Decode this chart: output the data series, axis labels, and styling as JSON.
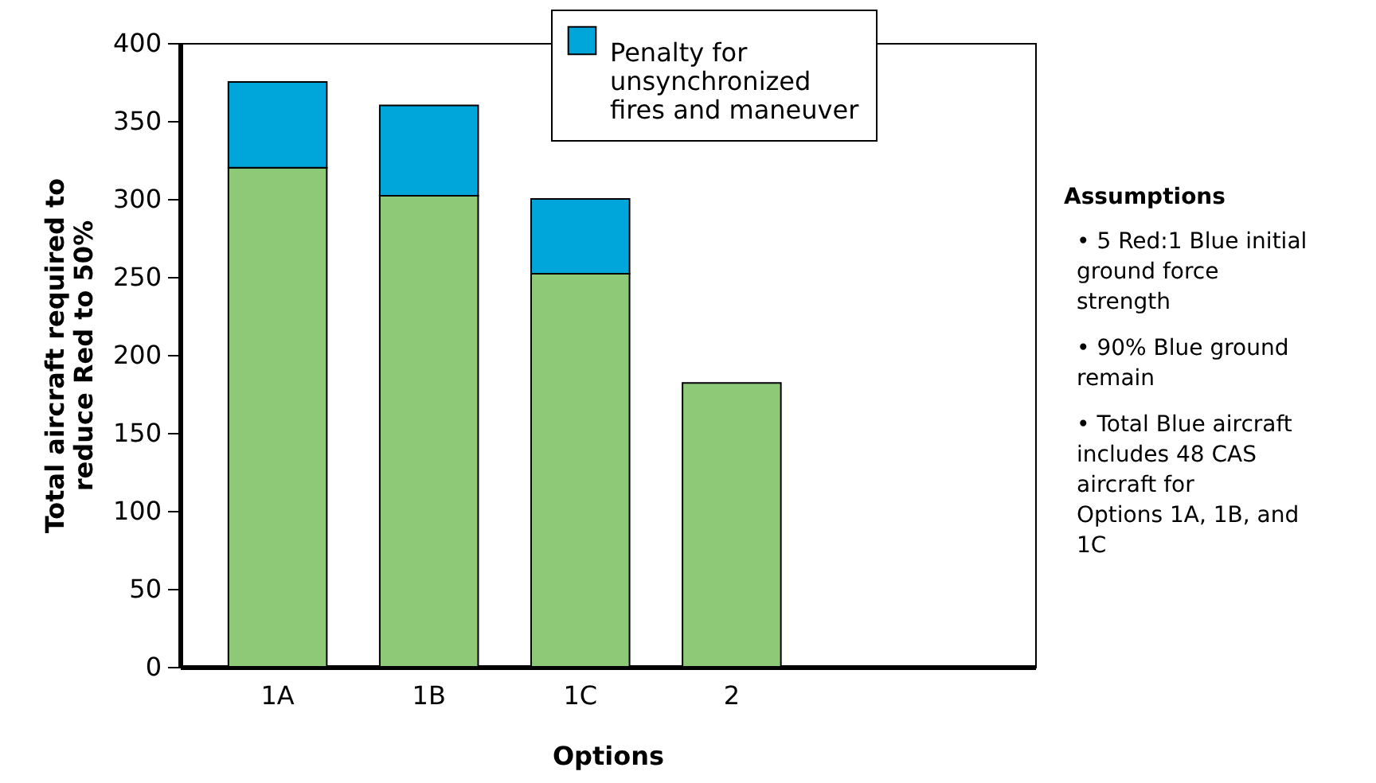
{
  "chart_data": {
    "type": "bar",
    "stacked": true,
    "xlabel": "Options",
    "ylabel": "Total aircraft required to reduce Red to 50%",
    "categories": [
      "1A",
      "1B",
      "1C",
      "2"
    ],
    "series": [
      {
        "color": "#8dc976",
        "values": [
          320,
          302,
          252,
          182
        ]
      },
      {
        "name": "Penalty for unsynchronized fires and maneuver",
        "color": "#00a5d9",
        "values": [
          55,
          58,
          48,
          null
        ]
      }
    ],
    "ylim": [
      0,
      400
    ],
    "yticks": [
      0,
      50,
      100,
      150,
      200,
      250,
      300,
      350,
      400
    ],
    "grid": false,
    "legend": "top right",
    "annotations": [
      "Assumptions",
      "• 5 Red:1 Blue initial ground force strength",
      "• 90% Blue ground remain",
      "• Total Blue aircraft includes 48 CAS aircraft for Options 1A, 1B, and 1C"
    ]
  }
}
